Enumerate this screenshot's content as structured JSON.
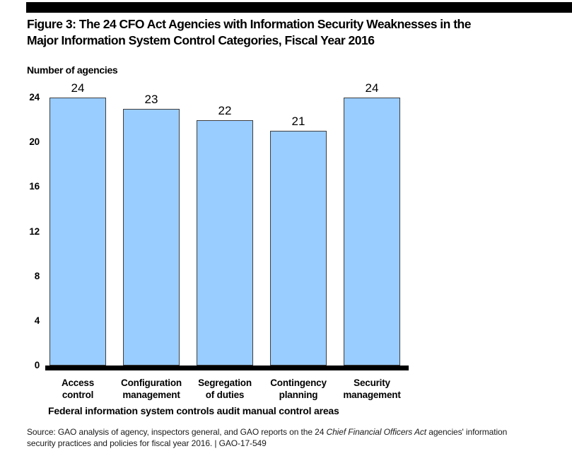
{
  "header": {
    "title_line1": "Figure 3: The 24 CFO Act Agencies with Information Security Weaknesses in the",
    "title_line2": "Major Information System Control Categories, Fiscal Year 2016"
  },
  "chart_data": {
    "type": "bar",
    "title": "Figure 3: The 24 CFO Act Agencies with Information Security Weaknesses in the Major Information System Control Categories, Fiscal Year 2016",
    "y_caption": "Number of agencies",
    "categories": [
      "Access\ncontrol",
      "Configuration\nmanagement",
      "Segregation\nof duties",
      "Contingency\nplanning",
      "Security\nmanagement"
    ],
    "values": [
      24,
      23,
      22,
      21,
      24
    ],
    "data_labels": [
      "24",
      "23",
      "22",
      "21",
      "24"
    ],
    "yticks": [
      0,
      4,
      8,
      12,
      16,
      20,
      24
    ],
    "ylim": [
      0,
      24
    ],
    "xlabel": "Federal information system controls audit manual control areas",
    "ylabel": "Number of agencies",
    "grid": false,
    "legend": "none",
    "bar_color": "#99CCFF",
    "bar_border_color": "#3f3f3f",
    "baseline_color": "#000000"
  },
  "source": {
    "line1_prefix": "Source: GAO analysis of agency, inspectors general, and GAO reports on the 24 ",
    "line1_italic": "Chief Financial Officers Act",
    "line1_suffix": " agencies' information",
    "line2": "security practices and policies for fiscal year 2016.  |  GAO-17-549"
  }
}
